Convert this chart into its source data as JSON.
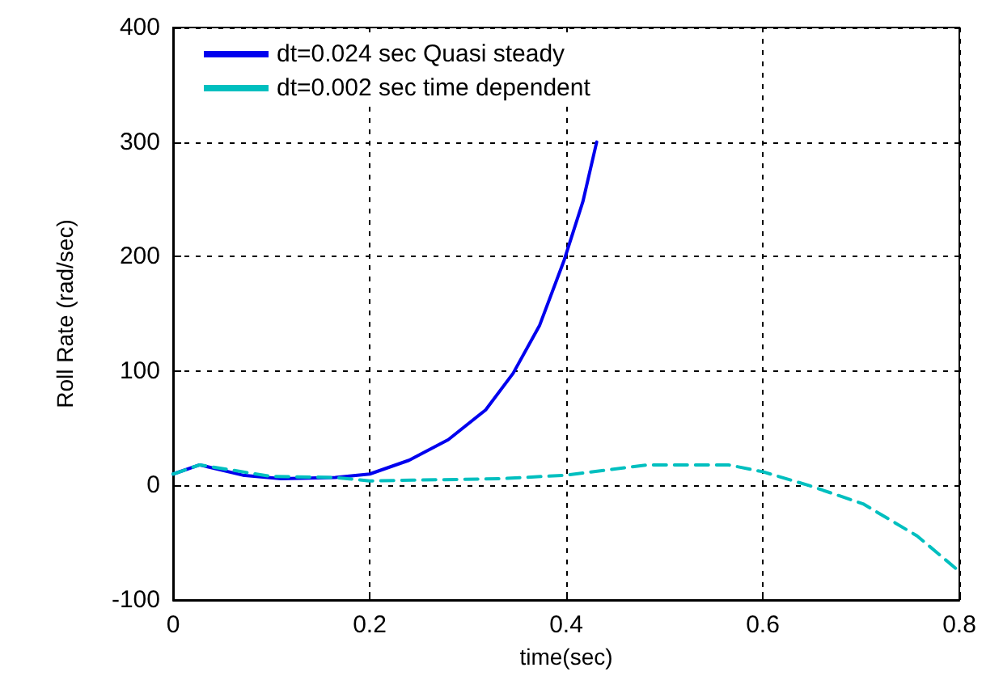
{
  "chart_data": {
    "type": "line",
    "xlabel": "time(sec)",
    "ylabel": "Roll Rate (rad/sec)",
    "xlim": [
      0,
      0.8
    ],
    "xticks": [
      0,
      0.2,
      0.4,
      0.6,
      0.8
    ],
    "ylim": [
      -100,
      400
    ],
    "yticks": [
      -100,
      0,
      100,
      200,
      300,
      400
    ],
    "grid": true,
    "legend": "top",
    "marker": "none",
    "series": [
      {
        "name": "dt=0.024 sec Quasi steady",
        "color": "#0000ee",
        "line_style": "solid",
        "x": [
          0,
          0.027,
          0.071,
          0.11,
          0.165,
          0.2,
          0.24,
          0.28,
          0.318,
          0.346,
          0.373,
          0.398,
          0.417,
          0.431
        ],
        "values": [
          10,
          18,
          9,
          6,
          7,
          10,
          22,
          40,
          66,
          98,
          140,
          197,
          248,
          300
        ]
      },
      {
        "name": "dt=0.002 sec time dependent",
        "color": "#00bfbf",
        "line_style": "dashed",
        "x": [
          0,
          0.027,
          0.099,
          0.165,
          0.2,
          0.335,
          0.4,
          0.483,
          0.565,
          0.6,
          0.647,
          0.702,
          0.757,
          0.8
        ],
        "values": [
          10,
          18,
          8,
          7,
          4,
          6,
          9,
          18,
          18,
          12,
          0,
          -16,
          -44,
          -75
        ]
      }
    ]
  }
}
